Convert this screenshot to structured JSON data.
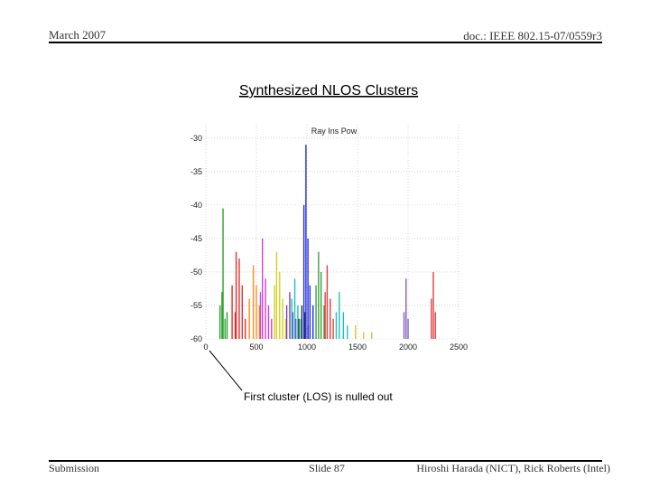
{
  "header": {
    "date": "March 2007",
    "doc": "doc.: IEEE 802.15-07/0559r3"
  },
  "title": "Synthesized NLOS Clusters",
  "chart_data": {
    "type": "stem",
    "title": "Ray Ins Pow",
    "annotation": "First cluster (LOS) is nulled out",
    "xlim": [
      0,
      2500
    ],
    "xticks": [
      0,
      500,
      1000,
      1500,
      2000,
      2500
    ],
    "ylim": [
      -60,
      -28
    ],
    "yticks": [
      -30,
      -35,
      -40,
      -45,
      -50,
      -55,
      -60
    ],
    "grid": true,
    "series": [
      {
        "color": "#2ca02c",
        "x": [
          140,
          160,
          170,
          190,
          210
        ],
        "values": [
          -55,
          -53,
          -40.5,
          -57,
          -56
        ]
      },
      {
        "color": "#e03030",
        "x": [
          260,
          290,
          300,
          330,
          360,
          390
        ],
        "values": [
          -52,
          -56,
          -47,
          -48,
          -52,
          -57
        ]
      },
      {
        "color": "#ff8c1a",
        "x": [
          430,
          470,
          500,
          530,
          560
        ],
        "values": [
          -54,
          -49,
          -52,
          -55,
          -57
        ]
      },
      {
        "color": "#d040d0",
        "x": [
          540,
          560,
          590,
          620,
          650
        ],
        "values": [
          -53,
          -45,
          -51,
          -55,
          -57
        ]
      },
      {
        "color": "#d4d020",
        "x": [
          680,
          700,
          730,
          760,
          790
        ],
        "values": [
          -52,
          -47,
          -50,
          -54,
          -57
        ]
      },
      {
        "color": "#8040c0",
        "x": [
          800,
          830,
          860,
          890
        ],
        "values": [
          -55,
          -53,
          -56,
          -57
        ]
      },
      {
        "color": "#20c0c0",
        "x": [
          850,
          880,
          910,
          940
        ],
        "values": [
          -54,
          -51,
          -55,
          -57
        ]
      },
      {
        "color": "#303030",
        "x": [
          920,
          950,
          980,
          1010
        ],
        "values": [
          -57,
          -55,
          -56,
          -58
        ]
      },
      {
        "color": "#2030e0",
        "x": [
          970,
          990,
          1010,
          1030,
          1060
        ],
        "values": [
          -40,
          -31,
          -45,
          -52,
          -55
        ]
      },
      {
        "color": "#3aa040",
        "x": [
          1090,
          1115,
          1140,
          1170
        ],
        "values": [
          -52,
          -47,
          -50,
          -55
        ]
      },
      {
        "color": "#e04040",
        "x": [
          1180,
          1200,
          1230,
          1260
        ],
        "values": [
          -53,
          -49,
          -54,
          -57
        ]
      },
      {
        "color": "#20c0c0",
        "x": [
          1290,
          1320,
          1360,
          1400
        ],
        "values": [
          -56,
          -53,
          -56,
          -58
        ]
      },
      {
        "color": "#e0c020",
        "x": [
          1480,
          1560,
          1640
        ],
        "values": [
          -58,
          -59,
          -59
        ]
      },
      {
        "color": "#8060c0",
        "x": [
          1960,
          1980,
          2000
        ],
        "values": [
          -56,
          -51,
          -57
        ]
      },
      {
        "color": "#e04040",
        "x": [
          2230,
          2250,
          2270
        ],
        "values": [
          -54,
          -50,
          -56
        ]
      }
    ]
  },
  "footer": {
    "left": "Submission",
    "center": "Slide 87",
    "right": "Hiroshi Harada (NICT), Rick Roberts (Intel)"
  }
}
